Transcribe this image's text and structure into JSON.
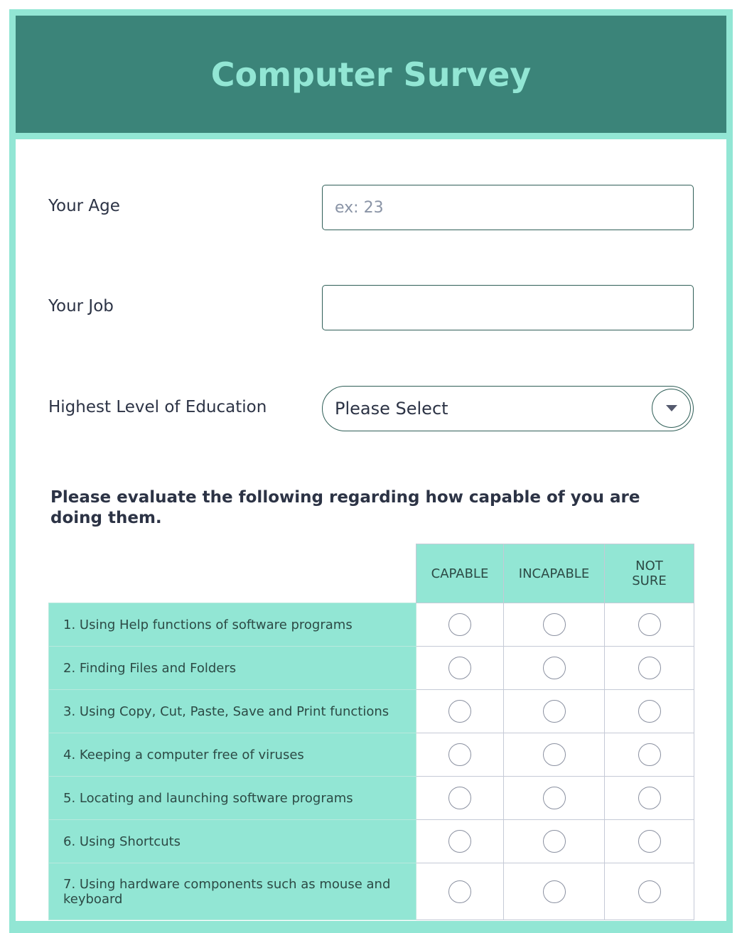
{
  "header": {
    "title": "Computer Survey"
  },
  "fields": {
    "age": {
      "label": "Your Age",
      "placeholder": "ex: 23"
    },
    "job": {
      "label": "Your Job",
      "value": ""
    },
    "education": {
      "label": "Highest Level of Education",
      "selected": "Please Select",
      "icon": "chevron-down-icon"
    }
  },
  "matrix": {
    "question": "Please evaluate the following regarding how capable of you are doing them.",
    "columns": [
      "CAPABLE",
      "INCAPABLE",
      "NOT SURE"
    ],
    "rows": [
      "1. Using Help functions of software programs",
      "2. Finding Files and Folders",
      "3. Using Copy, Cut, Paste, Save and Print functions",
      "4. Keeping a computer free of viruses",
      "5. Locating and launching software programs",
      "6. Using Shortcuts",
      "7. Using hardware components such as mouse and keyboard"
    ]
  },
  "colors": {
    "accent": "#92e6d4",
    "header_bg": "#3b8479",
    "text": "#2c3345"
  }
}
